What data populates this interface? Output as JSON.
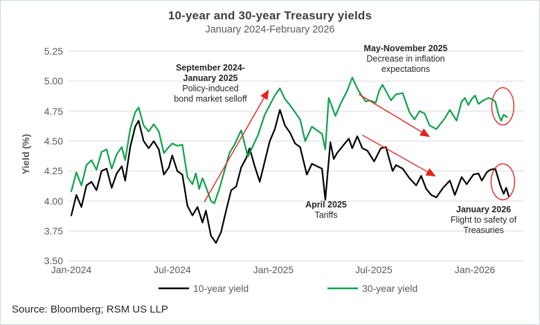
{
  "source_note": "Source: Bloomberg; RSM US LLP",
  "chart_data": {
    "type": "line",
    "title": "10-year and 30-year Treasury yields",
    "subtitle": "January 2024-February 2026",
    "xlabel": "",
    "ylabel": "Yield (%)",
    "ylim": [
      3.5,
      5.25
    ],
    "x_range": [
      "Jan-2024",
      "Feb-2026"
    ],
    "grid": "horizontal",
    "legend_position": "bottom",
    "y_ticks": [
      "5.25",
      "5.00",
      "4.75",
      "4.50",
      "4.25",
      "4.00",
      "3.75",
      "3.50"
    ],
    "x_ticks": [
      "Jan-2024",
      "Jul-2024",
      "Jan-2025",
      "Jul-2025",
      "Jan-2026"
    ],
    "x_tick_months": [
      0,
      6,
      12,
      18,
      24
    ],
    "x_unit": "months since Jan-2024",
    "colors": {
      "line_10yr": "#000000",
      "line_30yr": "#0FA24C",
      "red": "#E3231D",
      "gridline": "#D9D9D9"
    },
    "series": [
      {
        "name": "10-year yield",
        "color": "#000000",
        "x": [
          0,
          0.3,
          0.6,
          0.9,
          1.2,
          1.5,
          1.8,
          2.1,
          2.4,
          2.7,
          3.0,
          3.2,
          3.5,
          3.8,
          4.0,
          4.3,
          4.6,
          4.9,
          5.2,
          5.5,
          5.8,
          6.0,
          6.3,
          6.6,
          6.9,
          7.2,
          7.5,
          7.8,
          8.0,
          8.3,
          8.6,
          8.9,
          9.2,
          9.5,
          9.8,
          10.1,
          10.4,
          10.6,
          10.9,
          11.2,
          11.5,
          11.8,
          12.1,
          12.4,
          12.7,
          13.0,
          13.3,
          13.6,
          14.0,
          14.3,
          14.6,
          14.9,
          15.1,
          15.4,
          15.6,
          15.8,
          16.2,
          16.5,
          16.7,
          17.0,
          17.3,
          17.6,
          18.0,
          18.4,
          18.7,
          19.1,
          19.3,
          19.7,
          20.1,
          20.5,
          20.8,
          21.1,
          21.4,
          21.7,
          22.1,
          22.5,
          22.8,
          23.2,
          23.5,
          23.9,
          24.2,
          24.4,
          24.7,
          24.9,
          25.2,
          25.5,
          25.7,
          25.85,
          26.0
        ],
        "y": [
          3.88,
          4.05,
          3.95,
          4.13,
          4.16,
          4.09,
          4.25,
          4.27,
          4.11,
          4.23,
          4.29,
          4.17,
          4.45,
          4.62,
          4.67,
          4.5,
          4.44,
          4.5,
          4.43,
          4.22,
          4.28,
          4.38,
          4.25,
          4.22,
          3.96,
          3.88,
          3.95,
          3.82,
          3.92,
          3.71,
          3.65,
          3.74,
          3.92,
          4.09,
          4.12,
          4.28,
          4.36,
          4.44,
          4.29,
          4.16,
          4.33,
          4.5,
          4.6,
          4.76,
          4.63,
          4.57,
          4.48,
          4.45,
          4.22,
          4.31,
          4.29,
          4.27,
          4.01,
          4.49,
          4.35,
          4.4,
          4.47,
          4.52,
          4.44,
          4.54,
          4.44,
          4.42,
          4.33,
          4.44,
          4.45,
          4.25,
          4.3,
          4.27,
          4.19,
          4.13,
          4.21,
          4.1,
          4.05,
          4.03,
          4.11,
          4.17,
          4.05,
          4.2,
          4.14,
          4.22,
          4.23,
          4.17,
          4.24,
          4.26,
          4.27,
          4.13,
          4.06,
          4.11,
          4.04
        ]
      },
      {
        "name": "30-year yield",
        "color": "#0FA24C",
        "x": [
          0,
          0.3,
          0.6,
          0.9,
          1.2,
          1.5,
          1.8,
          2.1,
          2.4,
          2.7,
          3.0,
          3.2,
          3.5,
          3.8,
          4.0,
          4.3,
          4.6,
          4.9,
          5.2,
          5.5,
          5.8,
          6.0,
          6.3,
          6.6,
          6.9,
          7.2,
          7.4,
          7.6,
          7.8,
          8.0,
          8.3,
          8.5,
          8.8,
          9.1,
          9.4,
          9.7,
          10.1,
          10.5,
          10.8,
          11.1,
          11.5,
          11.8,
          12.1,
          12.4,
          12.7,
          13.0,
          13.3,
          13.6,
          13.9,
          14.3,
          14.6,
          14.9,
          15.1,
          15.3,
          15.7,
          16.0,
          16.4,
          16.7,
          17.0,
          17.2,
          17.5,
          17.7,
          18.1,
          18.3,
          18.5,
          19.0,
          19.3,
          19.7,
          20.1,
          20.4,
          20.7,
          21.0,
          21.3,
          21.7,
          22.2,
          22.5,
          22.9,
          23.2,
          23.4,
          23.6,
          23.8,
          24.0,
          24.2,
          24.5,
          24.8,
          25.0,
          25.2,
          25.4,
          25.55,
          25.7,
          25.9
        ],
        "y": [
          4.08,
          4.24,
          4.13,
          4.3,
          4.34,
          4.26,
          4.41,
          4.43,
          4.27,
          4.39,
          4.45,
          4.34,
          4.6,
          4.74,
          4.78,
          4.63,
          4.58,
          4.64,
          4.58,
          4.4,
          4.45,
          4.48,
          4.46,
          4.47,
          4.2,
          4.14,
          4.23,
          4.1,
          4.19,
          4.12,
          4.0,
          3.98,
          4.1,
          4.25,
          4.4,
          4.47,
          4.59,
          4.37,
          4.46,
          4.55,
          4.72,
          4.8,
          4.88,
          4.94,
          4.85,
          4.8,
          4.74,
          4.68,
          4.5,
          4.62,
          4.59,
          4.56,
          4.43,
          4.86,
          4.71,
          4.81,
          4.92,
          5.03,
          4.94,
          4.89,
          4.83,
          4.84,
          4.82,
          4.92,
          4.97,
          4.84,
          4.89,
          4.9,
          4.74,
          4.68,
          4.75,
          4.73,
          4.63,
          4.6,
          4.69,
          4.76,
          4.67,
          4.83,
          4.86,
          4.8,
          4.85,
          4.88,
          4.81,
          4.84,
          4.86,
          4.85,
          4.83,
          4.72,
          4.67,
          4.72,
          4.7
        ]
      }
    ],
    "annotations": [
      {
        "line1": "September 2024-",
        "line2": "January 2025",
        "line3": "Policy-induced",
        "line4": "bond market selloff"
      },
      {
        "line1": "May-November 2025",
        "line2": "Decrease in inflation",
        "line3": "expectations"
      },
      {
        "line1": "April 2025",
        "line2": "Tariffs"
      },
      {
        "line1": "January 2026",
        "line2": "Flight to safety of",
        "line3": "Treasuries"
      }
    ],
    "arrows": [
      {
        "name": "selloff-arrow-up",
        "from_month": 7.9,
        "from_value": 3.99,
        "to_month": 11.7,
        "to_value": 4.92
      },
      {
        "name": "inflation-arrow-down-30yr",
        "from_month": 17.1,
        "from_value": 4.89,
        "to_month": 21.25,
        "to_value": 4.54
      },
      {
        "name": "inflation-arrow-down-10yr",
        "from_month": 17.3,
        "from_value": 4.55,
        "to_month": 21.6,
        "to_value": 4.21
      },
      {
        "name": "",
        "from_month": 0,
        "from_value": 0,
        "to_month": 0,
        "to_value": 0,
        "unused": true
      }
    ],
    "ellipses": [
      {
        "name": "highlight-ellipse-30yr",
        "cx_month": 25.65,
        "cy_value": 4.79,
        "rx_months": 0.66,
        "ry_value": 0.155
      },
      {
        "name": "highlight-ellipse-10yr",
        "cx_month": 25.65,
        "cy_value": 4.16,
        "rx_months": 0.7,
        "ry_value": 0.15
      }
    ]
  }
}
